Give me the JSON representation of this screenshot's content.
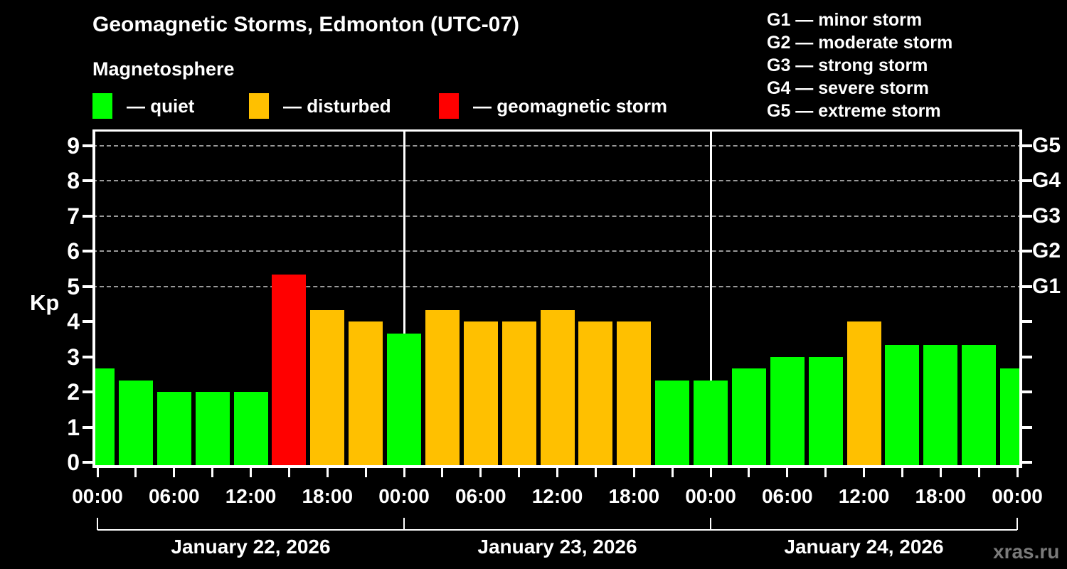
{
  "title": "Geomagnetic Storms, Edmonton (UTC-07)",
  "subtitle": "Magnetosphere",
  "kp_axis_label": "Kp",
  "watermark": "xras.ru",
  "colors": {
    "quiet": "#00ff00",
    "disturbed": "#ffc000",
    "storm": "#ff0000",
    "axis": "#ffffff",
    "gridline": "#999999",
    "background": "#000000",
    "watermark_text": "#7a7a7a"
  },
  "legend": {
    "items": [
      {
        "label": "— quiet",
        "state": "quiet"
      },
      {
        "label": "— disturbed",
        "state": "disturbed"
      },
      {
        "label": "— geomagnetic storm",
        "state": "storm"
      }
    ]
  },
  "storm_scale_legend": {
    "items": [
      "G1 — minor storm",
      "G2 — moderate storm",
      "G3 — strong storm",
      "G4 — severe storm",
      "G5 — extreme storm"
    ]
  },
  "chart_data": {
    "type": "bar",
    "title": "Geomagnetic Storms, Edmonton (UTC-07)",
    "subtitle": "Magnetosphere",
    "ylabel": "Kp",
    "ylim": [
      0,
      9.6
    ],
    "yticks": [
      0,
      1,
      2,
      3,
      4,
      5,
      6,
      7,
      8,
      9
    ],
    "dashed_gridlines_at": [
      5,
      6,
      7,
      8,
      9
    ],
    "right_axis": [
      {
        "kp": 5,
        "label": "G1"
      },
      {
        "kp": 6,
        "label": "G2"
      },
      {
        "kp": 7,
        "label": "G3"
      },
      {
        "kp": 8,
        "label": "G4"
      },
      {
        "kp": 9,
        "label": "G5"
      }
    ],
    "x_total_hours": 72,
    "bar_interval_hours": 3,
    "day_boundary_hours": [
      24,
      48
    ],
    "x_tick_every_hours": 3,
    "x_tick_labels": [
      "00:00",
      "06:00",
      "12:00",
      "18:00",
      "00:00",
      "06:00",
      "12:00",
      "18:00",
      "00:00",
      "06:00",
      "12:00",
      "18:00",
      "00:00"
    ],
    "day_labels": [
      "January 22, 2026",
      "January 23, 2026",
      "January 24, 2026"
    ],
    "bars": [
      {
        "hour": 0,
        "kp": 2.67,
        "state": "quiet"
      },
      {
        "hour": 3,
        "kp": 2.33,
        "state": "quiet"
      },
      {
        "hour": 6,
        "kp": 2.0,
        "state": "quiet"
      },
      {
        "hour": 9,
        "kp": 2.0,
        "state": "quiet"
      },
      {
        "hour": 12,
        "kp": 2.0,
        "state": "quiet"
      },
      {
        "hour": 15,
        "kp": 5.33,
        "state": "storm"
      },
      {
        "hour": 18,
        "kp": 4.33,
        "state": "disturbed"
      },
      {
        "hour": 21,
        "kp": 4.0,
        "state": "disturbed"
      },
      {
        "hour": 24,
        "kp": 3.67,
        "state": "quiet"
      },
      {
        "hour": 27,
        "kp": 4.33,
        "state": "disturbed"
      },
      {
        "hour": 30,
        "kp": 4.0,
        "state": "disturbed"
      },
      {
        "hour": 33,
        "kp": 4.0,
        "state": "disturbed"
      },
      {
        "hour": 36,
        "kp": 4.33,
        "state": "disturbed"
      },
      {
        "hour": 39,
        "kp": 4.0,
        "state": "disturbed"
      },
      {
        "hour": 42,
        "kp": 4.0,
        "state": "disturbed"
      },
      {
        "hour": 45,
        "kp": 2.33,
        "state": "quiet"
      },
      {
        "hour": 48,
        "kp": 2.33,
        "state": "quiet"
      },
      {
        "hour": 51,
        "kp": 2.67,
        "state": "quiet"
      },
      {
        "hour": 54,
        "kp": 3.0,
        "state": "quiet"
      },
      {
        "hour": 57,
        "kp": 3.0,
        "state": "quiet"
      },
      {
        "hour": 60,
        "kp": 4.0,
        "state": "disturbed"
      },
      {
        "hour": 63,
        "kp": 3.33,
        "state": "quiet"
      },
      {
        "hour": 66,
        "kp": 3.33,
        "state": "quiet"
      },
      {
        "hour": 69,
        "kp": 3.33,
        "state": "quiet"
      },
      {
        "hour": 72,
        "kp": 2.67,
        "state": "quiet"
      }
    ],
    "legend_position": "top-left",
    "grid": "dashed horizontal at G-levels only"
  }
}
